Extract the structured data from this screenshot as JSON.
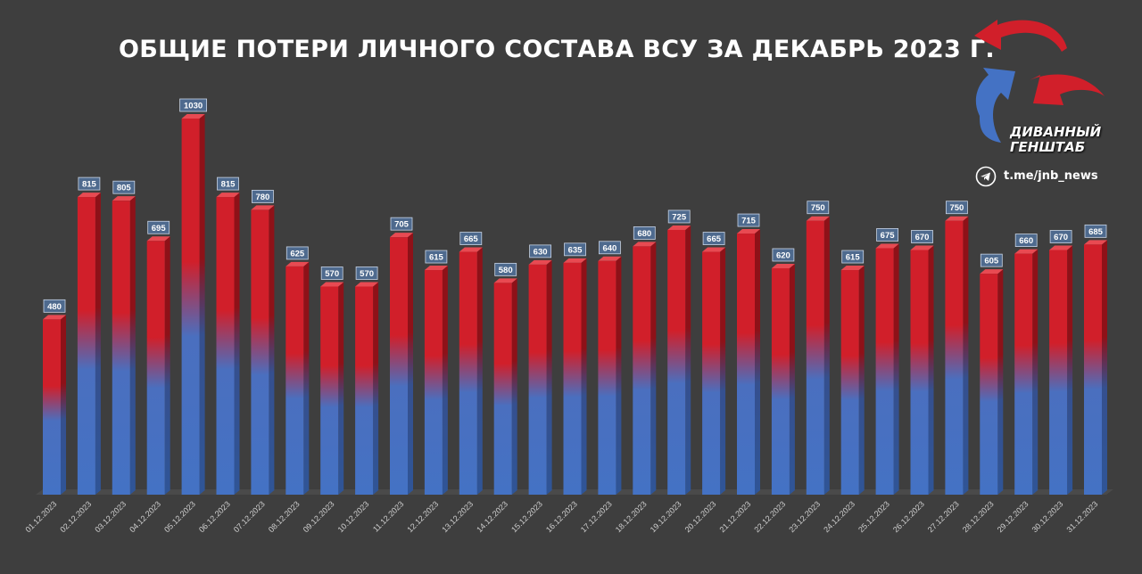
{
  "title": "ОБЩИЕ ПОТЕРИ ЛИЧНОГО СОСТАВА ВСУ ЗА ДЕКАБРЬ 2023 Г.",
  "logo": {
    "line1": "ДИВАННЫЙ",
    "line2": "ГЕНШТАБ",
    "handle": "t.me/jnb_news",
    "icon": "telegram-icon"
  },
  "colors": {
    "background": "#3e3e3e",
    "bar_top": "#d11f2a",
    "bar_bottom": "#4472c4",
    "label_bg": "#4e6a8e"
  },
  "chart_data": {
    "type": "bar",
    "title": "ОБЩИЕ ПОТЕРИ ЛИЧНОГО СОСТАВА ВСУ ЗА ДЕКАБРЬ 2023 Г.",
    "xlabel": "",
    "ylabel": "",
    "categories": [
      "01.12.2023",
      "02.12.2023",
      "03.12.2023",
      "04.12.2023",
      "05.12.2023",
      "06.12.2023",
      "07.12.2023",
      "08.12.2023",
      "09.12.2023",
      "10.12.2023",
      "11.12.2023",
      "12.12.2023",
      "13.12.2023",
      "14.12.2023",
      "15.12.2023",
      "16.12.2023",
      "17.12.2023",
      "18.12.2023",
      "19.12.2023",
      "20.12.2023",
      "21.12.2023",
      "22.12.2023",
      "23.12.2023",
      "24.12.2023",
      "25.12.2023",
      "26.12.2023",
      "27.12.2023",
      "28.12.2023",
      "29.12.2023",
      "30.12.2023",
      "31.12.2023"
    ],
    "values": [
      480,
      815,
      805,
      695,
      1030,
      815,
      780,
      625,
      570,
      570,
      705,
      615,
      665,
      580,
      630,
      635,
      640,
      680,
      725,
      665,
      715,
      620,
      750,
      615,
      675,
      670,
      750,
      605,
      660,
      670,
      685
    ],
    "ylim": [
      0,
      1030
    ],
    "grid": false,
    "legend": "none",
    "data_labels": true
  }
}
